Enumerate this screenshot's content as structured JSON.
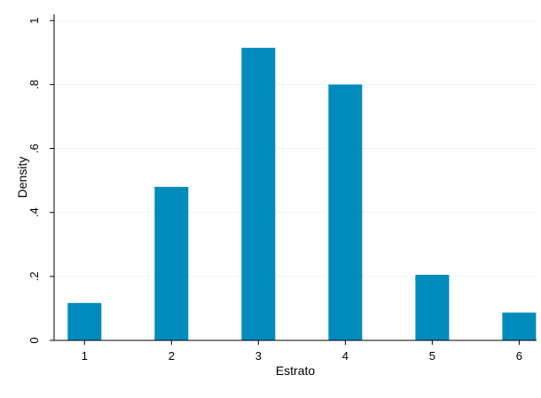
{
  "chart_data": {
    "type": "bar",
    "xlabel": "Estrato",
    "ylabel": "Density",
    "x": [
      1,
      2,
      3,
      4,
      5,
      6
    ],
    "values": [
      0.117,
      0.48,
      0.915,
      0.8,
      0.205,
      0.087
    ],
    "xticks": [
      1,
      2,
      3,
      4,
      5,
      6
    ],
    "xtick_labels": [
      "1",
      "2",
      "3",
      "4",
      "5",
      "6"
    ],
    "yticks": [
      0,
      0.2,
      0.4,
      0.6,
      0.8,
      1
    ],
    "ytick_labels": [
      "0",
      ".2",
      ".4",
      ".6",
      ".8",
      "1"
    ],
    "xlim": [
      0.65,
      6.2
    ],
    "ylim": [
      0,
      1.02
    ],
    "grid": true,
    "bar_color": "#008bbc",
    "grid_color": "#eaf2f3"
  }
}
